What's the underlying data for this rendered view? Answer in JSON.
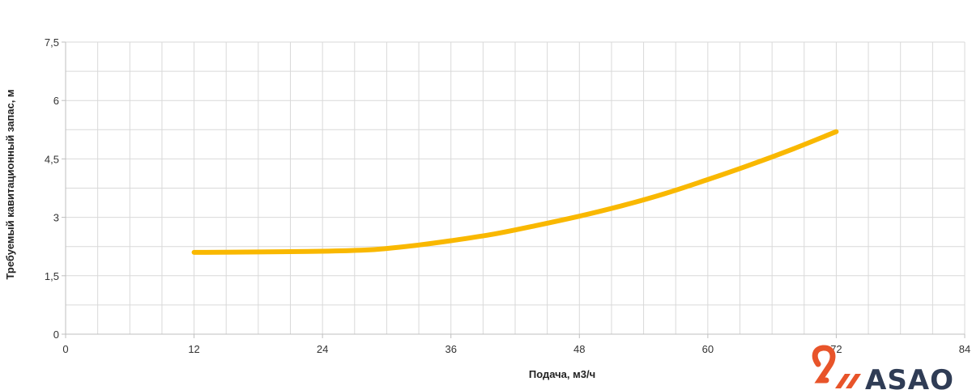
{
  "chart_data": {
    "type": "line",
    "xlabel": "Подача, м3/ч",
    "ylabel": "Требуемый кавитационный запас, м",
    "xlim": [
      0,
      84
    ],
    "ylim": [
      0,
      7.5
    ],
    "x_ticks": [
      0,
      12,
      24,
      36,
      48,
      60,
      72,
      84
    ],
    "x_tick_labels": [
      "0",
      "12",
      "24",
      "36",
      "48",
      "60",
      "72",
      "84"
    ],
    "y_ticks": [
      0,
      1.5,
      3,
      4.5,
      6,
      7.5
    ],
    "y_tick_labels": [
      "0",
      "1,5",
      "3",
      "4,5",
      "6",
      "7,5"
    ],
    "grid": true,
    "series": [
      {
        "color": "#f9b800",
        "x": [
          12,
          18,
          24,
          28,
          30,
          33,
          36,
          40,
          44,
          48,
          52,
          56,
          60,
          64,
          68,
          72
        ],
        "y": [
          2.1,
          2.11,
          2.13,
          2.16,
          2.2,
          2.29,
          2.4,
          2.57,
          2.79,
          3.03,
          3.3,
          3.61,
          3.97,
          4.35,
          4.76,
          5.2
        ]
      }
    ]
  },
  "logo": {
    "text": "ASAO",
    "mark_color": "#e8542a",
    "text_color": "#2f3c55"
  }
}
